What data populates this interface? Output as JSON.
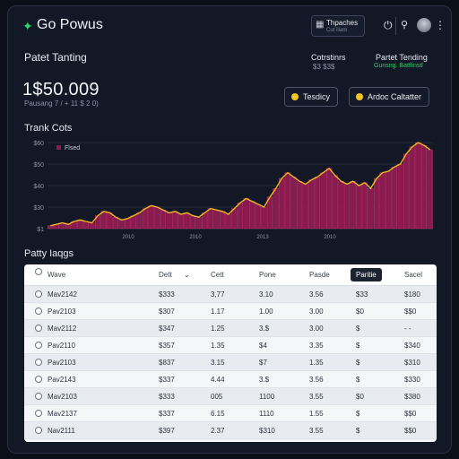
{
  "header": {
    "app_name": "Go Powus",
    "button_label": "Thpaches",
    "button_sub": "Cut iliam",
    "icons": [
      "logo-icon",
      "power-icon",
      "search-icon",
      "more-icon"
    ]
  },
  "summary": {
    "section_title": "Patet Tanting",
    "amount": "1$50.009",
    "amount_sub": "Pausang 7 / + 11 $ 2 0)",
    "kpi": [
      {
        "label": "Cotrstinrs",
        "value": "$3 $3$"
      },
      {
        "label": "Partet Tending",
        "value": "Gunsng. Battlinstl"
      }
    ],
    "buttons": [
      {
        "label": "Tesdicy"
      },
      {
        "label": "Ardoc Caltatter"
      }
    ],
    "accent_color": "#f3c623",
    "positive_color": "#38c96a"
  },
  "chart_data": {
    "type": "bar",
    "title": "Trank Cots",
    "legend": "Flsed",
    "legend_placement": "top-left",
    "y_tick_labels": [
      "$60",
      "$50",
      "$40",
      "$30",
      "$1"
    ],
    "x_tick_labels": [
      "2010",
      "2010",
      "2013",
      "2010"
    ],
    "ylim": [
      0,
      60
    ],
    "values": [
      2,
      3,
      4,
      3,
      5,
      6,
      5,
      4,
      9,
      12,
      11,
      8,
      6,
      7,
      9,
      11,
      14,
      16,
      15,
      13,
      11,
      12,
      10,
      11,
      9,
      8,
      11,
      14,
      13,
      12,
      10,
      14,
      18,
      21,
      19,
      17,
      15,
      22,
      28,
      35,
      39,
      36,
      33,
      31,
      34,
      36,
      39,
      42,
      37,
      33,
      31,
      33,
      30,
      32,
      28,
      35,
      39,
      40,
      43,
      45,
      52,
      57,
      60,
      58,
      55
    ],
    "bar_color": "#8d1a4f",
    "line_color": "#f1b51d",
    "grid": true
  },
  "table": {
    "title": "Patty Iaqgs",
    "columns": [
      "Wave",
      "Dett",
      "Cett",
      "Pone",
      "Pasde",
      "Paritie",
      "Sacel"
    ],
    "active_column": 5,
    "rows": [
      [
        "Mav2142",
        "$333",
        "3,77",
        "3.10",
        "3.56",
        "$33",
        "$180"
      ],
      [
        "Pav2103",
        "$307",
        "1.17",
        "1.00",
        "3.00",
        "$0",
        "$$0"
      ],
      [
        "Mav2112",
        "$347",
        "1.25",
        "3.$",
        "3.00",
        "$",
        "- -"
      ],
      [
        "Pav2110",
        "$357",
        "1.35",
        "$4",
        "3.35",
        "$",
        "$340"
      ],
      [
        "Pav2103",
        "$837",
        "3.15",
        "$7",
        "1.35",
        "$",
        "$310"
      ],
      [
        "Pav2143",
        "$337",
        "4.44",
        "3.$",
        "3.56",
        "$",
        "$330"
      ],
      [
        "Mav2103",
        "$333",
        "005",
        "1100",
        "3.55",
        "$0",
        "$380"
      ],
      [
        "Mav2137",
        "$337",
        "6.15",
        "1110",
        "1.55",
        "$",
        "$$0"
      ],
      [
        "Nav2111",
        "$397",
        "2.37",
        "$310",
        "3.55",
        "$",
        "$$0"
      ]
    ]
  }
}
